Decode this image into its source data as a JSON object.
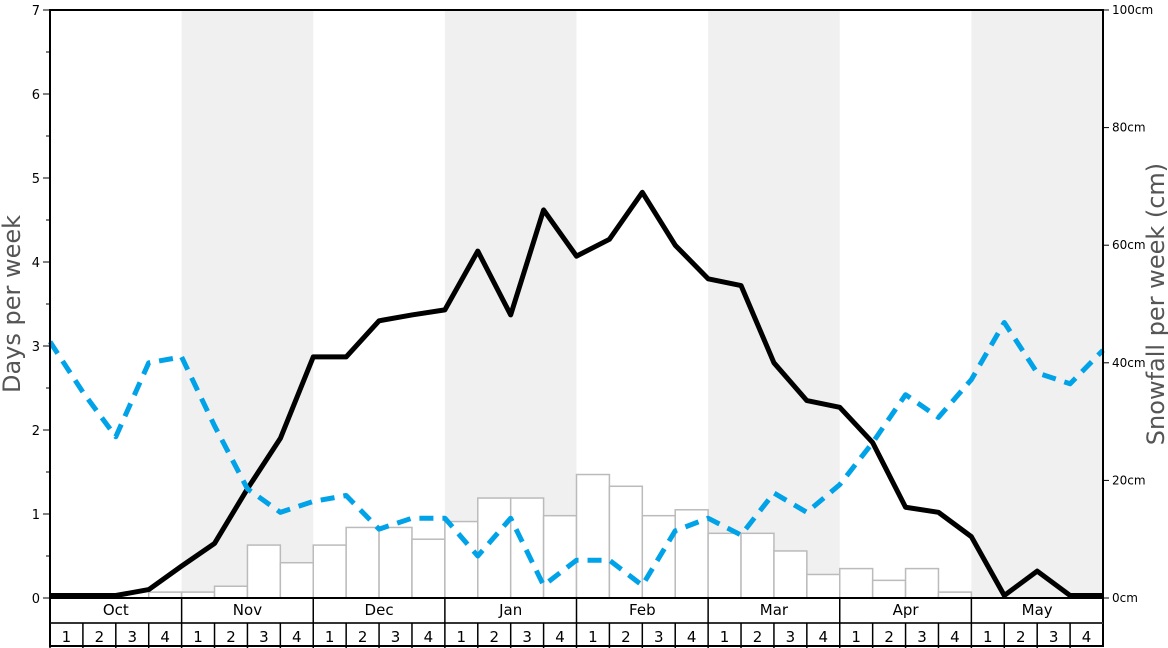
{
  "chart_data": {
    "type": "line",
    "ylabel": "Days per week",
    "y2label": "Snowfall per week (cm)",
    "ylim": [
      0,
      7
    ],
    "y2lim": [
      0,
      100
    ],
    "yticks": [
      "0",
      "1",
      "2",
      "3",
      "4",
      "5",
      "6",
      "7"
    ],
    "y2ticks": [
      "0cm",
      "20cm",
      "40cm",
      "60cm",
      "80cm",
      "100cm"
    ],
    "months": [
      "Oct",
      "Nov",
      "Dec",
      "Jan",
      "Feb",
      "Mar",
      "Apr",
      "May"
    ],
    "weeks": [
      "1",
      "2",
      "3",
      "4"
    ],
    "shaded_months": [
      "Nov",
      "Jan",
      "Mar",
      "May"
    ],
    "bars_cm": [
      0,
      0,
      0,
      1,
      1,
      2,
      9,
      6,
      9,
      12,
      12,
      10,
      13,
      17,
      17,
      14,
      21,
      19,
      14,
      15,
      11,
      11,
      8,
      4,
      5,
      3,
      5,
      1,
      0,
      0,
      0,
      0
    ],
    "series": [
      {
        "style": "solid",
        "color": "#000000",
        "values": [
          0.03,
          0.03,
          0.03,
          0.1,
          0.38,
          0.65,
          1.3,
          1.9,
          2.87,
          2.87,
          3.3,
          3.37,
          3.43,
          4.13,
          3.37,
          4.62,
          4.07,
          4.27,
          4.83,
          4.2,
          3.8,
          3.72,
          2.8,
          2.35,
          2.27,
          1.85,
          1.08,
          1.02,
          0.73,
          0.03,
          0.32,
          0.03,
          0.03
        ]
      },
      {
        "style": "dashed",
        "color": "#00a2e8",
        "values": [
          3.05,
          2.45,
          1.92,
          2.8,
          2.87,
          2.05,
          1.3,
          1.02,
          1.15,
          1.22,
          0.82,
          0.95,
          0.95,
          0.5,
          0.95,
          0.15,
          0.45,
          0.45,
          0.15,
          0.8,
          0.95,
          0.75,
          1.25,
          1.02,
          1.35,
          1.85,
          2.42,
          2.15,
          2.6,
          3.28,
          2.68,
          2.55,
          2.95
        ]
      }
    ],
    "colors": {
      "shade": "#f0f0f0",
      "bar_fill": "#ffffff",
      "bar_stroke": "#bbbbbb"
    }
  }
}
